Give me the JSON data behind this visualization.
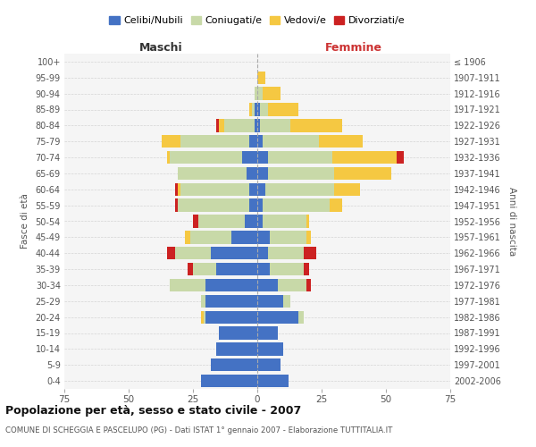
{
  "age_groups": [
    "0-4",
    "5-9",
    "10-14",
    "15-19",
    "20-24",
    "25-29",
    "30-34",
    "35-39",
    "40-44",
    "45-49",
    "50-54",
    "55-59",
    "60-64",
    "65-69",
    "70-74",
    "75-79",
    "80-84",
    "85-89",
    "90-94",
    "95-99",
    "100+"
  ],
  "birth_years": [
    "2002-2006",
    "1997-2001",
    "1992-1996",
    "1987-1991",
    "1982-1986",
    "1977-1981",
    "1972-1976",
    "1967-1971",
    "1962-1966",
    "1957-1961",
    "1952-1956",
    "1947-1951",
    "1942-1946",
    "1937-1941",
    "1932-1936",
    "1927-1931",
    "1922-1926",
    "1917-1921",
    "1912-1916",
    "1907-1911",
    "≤ 1906"
  ],
  "males": {
    "celibi": [
      22,
      18,
      16,
      15,
      20,
      20,
      20,
      16,
      18,
      10,
      5,
      3,
      3,
      4,
      6,
      3,
      1,
      1,
      0,
      0,
      0
    ],
    "coniugati": [
      0,
      0,
      0,
      0,
      1,
      2,
      14,
      9,
      14,
      16,
      18,
      28,
      27,
      27,
      28,
      27,
      12,
      1,
      1,
      0,
      0
    ],
    "vedovi": [
      0,
      0,
      0,
      0,
      1,
      0,
      0,
      0,
      0,
      2,
      0,
      0,
      1,
      0,
      1,
      7,
      2,
      1,
      0,
      0,
      0
    ],
    "divorziati": [
      0,
      0,
      0,
      0,
      0,
      0,
      0,
      2,
      3,
      0,
      2,
      1,
      1,
      0,
      0,
      0,
      1,
      0,
      0,
      0,
      0
    ]
  },
  "females": {
    "nubili": [
      12,
      9,
      10,
      8,
      16,
      10,
      8,
      5,
      4,
      5,
      2,
      2,
      3,
      4,
      4,
      2,
      1,
      1,
      0,
      0,
      0
    ],
    "coniugate": [
      0,
      0,
      0,
      0,
      2,
      3,
      11,
      13,
      14,
      14,
      17,
      26,
      27,
      26,
      25,
      22,
      12,
      3,
      2,
      0,
      0
    ],
    "vedove": [
      0,
      0,
      0,
      0,
      0,
      0,
      0,
      0,
      0,
      2,
      1,
      5,
      10,
      22,
      25,
      17,
      20,
      12,
      7,
      3,
      0
    ],
    "divorziate": [
      0,
      0,
      0,
      0,
      0,
      0,
      2,
      2,
      5,
      0,
      0,
      0,
      0,
      0,
      3,
      0,
      0,
      0,
      0,
      0,
      0
    ]
  },
  "colors": {
    "celibi_nubili": "#4472c4",
    "coniugati": "#c8d9a8",
    "vedovi": "#f5c842",
    "divorziati": "#cc2222"
  },
  "xlim": 75,
  "title": "Popolazione per età, sesso e stato civile - 2007",
  "subtitle": "COMUNE DI SCHEGGIA E PASCELUPO (PG) - Dati ISTAT 1° gennaio 2007 - Elaborazione TUTTITALIA.IT",
  "xlabel_left": "Maschi",
  "xlabel_right": "Femmine",
  "ylabel_left": "Fasce di età",
  "ylabel_right": "Anni di nascita",
  "legend_labels": [
    "Celibi/Nubili",
    "Coniugati/e",
    "Vedovi/e",
    "Divorziati/e"
  ],
  "background_color": "#f5f5f5",
  "grid_color": "#cccccc"
}
